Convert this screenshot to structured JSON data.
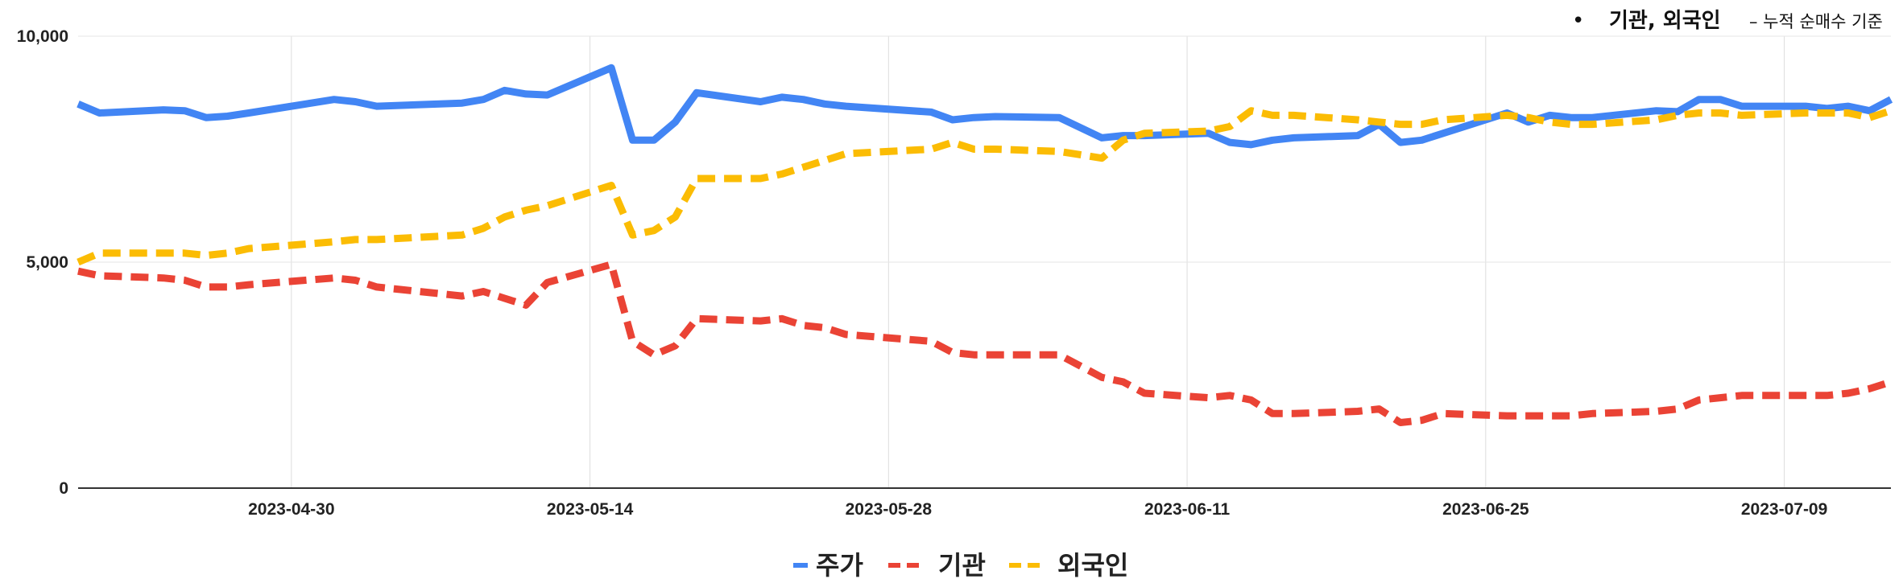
{
  "chart_data": {
    "type": "line",
    "title": "",
    "xlabel": "",
    "ylabel": "",
    "ylim": [
      0,
      10000
    ],
    "y_ticks": [
      0,
      5000,
      10000
    ],
    "y_tick_labels": [
      "0",
      "5,000",
      "10,000"
    ],
    "x_ticks": [
      "2023-04-30",
      "2023-05-14",
      "2023-05-28",
      "2023-06-11",
      "2023-06-25",
      "2023-07-09"
    ],
    "x_range": [
      "2023-04-20",
      "2023-07-14"
    ],
    "grid": true,
    "legend_position": "bottom",
    "annotation": {
      "bullet": "•",
      "main": "기관, 외국인",
      "sub": "– 누적 순매수 기준",
      "position": "top-right"
    },
    "x": [
      "2023-04-20",
      "2023-04-21",
      "2023-04-24",
      "2023-04-25",
      "2023-04-26",
      "2023-04-27",
      "2023-04-28",
      "2023-05-02",
      "2023-05-03",
      "2023-05-04",
      "2023-05-08",
      "2023-05-09",
      "2023-05-10",
      "2023-05-11",
      "2023-05-12",
      "2023-05-15",
      "2023-05-16",
      "2023-05-17",
      "2023-05-18",
      "2023-05-19",
      "2023-05-22",
      "2023-05-23",
      "2023-05-24",
      "2023-05-25",
      "2023-05-26",
      "2023-05-30",
      "2023-05-31",
      "2023-06-01",
      "2023-06-02",
      "2023-06-05",
      "2023-06-07",
      "2023-06-08",
      "2023-06-09",
      "2023-06-12",
      "2023-06-13",
      "2023-06-14",
      "2023-06-15",
      "2023-06-16",
      "2023-06-19",
      "2023-06-20",
      "2023-06-21",
      "2023-06-22",
      "2023-06-23",
      "2023-06-26",
      "2023-06-27",
      "2023-06-28",
      "2023-06-29",
      "2023-06-30",
      "2023-07-03",
      "2023-07-04",
      "2023-07-05",
      "2023-07-06",
      "2023-07-07",
      "2023-07-10",
      "2023-07-11",
      "2023-07-12",
      "2023-07-13",
      "2023-07-14"
    ],
    "series": [
      {
        "name": "주가",
        "color": "#4285f4",
        "style": "solid",
        "values": [
          8500,
          8300,
          8370,
          8350,
          8200,
          8230,
          8300,
          8600,
          8550,
          8450,
          8520,
          8600,
          8800,
          8720,
          8700,
          9300,
          7700,
          7700,
          8100,
          8750,
          8550,
          8650,
          8600,
          8500,
          8450,
          8320,
          8150,
          8200,
          8220,
          8200,
          7750,
          7800,
          7800,
          7850,
          7650,
          7600,
          7700,
          7750,
          7800,
          8050,
          7650,
          7700,
          7850,
          8300,
          8100,
          8250,
          8200,
          8200,
          8350,
          8330,
          8600,
          8600,
          8450,
          8450,
          8400,
          8450,
          8350,
          8600
        ]
      },
      {
        "name": "기관",
        "color": "#ea4335",
        "style": "dashed",
        "values": [
          4800,
          4700,
          4650,
          4600,
          4450,
          4450,
          4500,
          4650,
          4600,
          4450,
          4250,
          4350,
          4200,
          4050,
          4550,
          4950,
          3250,
          2950,
          3150,
          3750,
          3700,
          3750,
          3600,
          3550,
          3400,
          3250,
          3000,
          2950,
          2950,
          2950,
          2450,
          2350,
          2100,
          2000,
          2050,
          1950,
          1650,
          1650,
          1700,
          1750,
          1450,
          1500,
          1650,
          1600,
          1600,
          1600,
          1600,
          1650,
          1700,
          1750,
          1950,
          2000,
          2050,
          2050,
          2050,
          2100,
          2200,
          2350
        ]
      },
      {
        "name": "외국인",
        "color": "#fbbc04",
        "style": "dashed",
        "values": [
          5000,
          5200,
          5200,
          5200,
          5150,
          5200,
          5300,
          5450,
          5500,
          5500,
          5600,
          5750,
          6000,
          6150,
          6250,
          6700,
          5600,
          5700,
          6000,
          6850,
          6850,
          6950,
          7100,
          7250,
          7400,
          7500,
          7650,
          7500,
          7500,
          7450,
          7300,
          7700,
          7850,
          7900,
          8000,
          8350,
          8250,
          8250,
          8150,
          8100,
          8050,
          8050,
          8150,
          8250,
          8200,
          8100,
          8050,
          8050,
          8150,
          8250,
          8300,
          8300,
          8250,
          8300,
          8300,
          8300,
          8200,
          8350
        ]
      }
    ]
  }
}
